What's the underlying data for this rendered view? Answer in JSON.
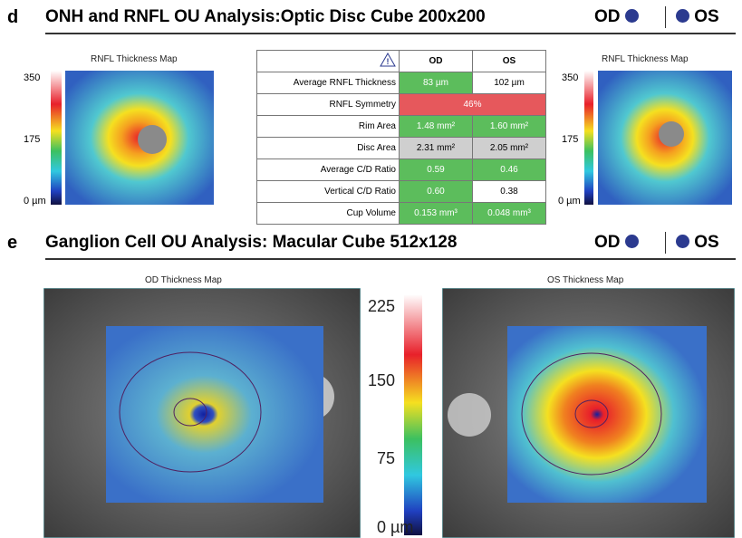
{
  "panel_d": {
    "label": "d",
    "title": "ONH and RNFL OU Analysis:Optic Disc Cube 200x200",
    "od": "OD",
    "os": "OS",
    "left_map": {
      "title": "RNFL Thickness Map",
      "scale": [
        "350",
        "175",
        "0 µm"
      ]
    },
    "right_map": {
      "title": "RNFL Thickness Map",
      "scale": [
        "350",
        "175",
        "0 µm"
      ]
    },
    "table": {
      "header": [
        "OD",
        "OS"
      ],
      "rows": [
        [
          "Average RNFL Thickness",
          "83 µm",
          "102 µm"
        ],
        [
          "RNFL Symmetry",
          "46%"
        ],
        [
          "Rim Area",
          "1.48 mm²",
          "1.60 mm²"
        ],
        [
          "Disc Area",
          "2.31 mm²",
          "2.05 mm²"
        ],
        [
          "Average C/D Ratio",
          "0.59",
          "0.46"
        ],
        [
          "Vertical C/D Ratio",
          "0.60",
          "0.38"
        ],
        [
          "Cup Volume",
          "0.153 mm³",
          "0.048 mm³"
        ]
      ]
    }
  },
  "panel_e": {
    "label": "e",
    "title": "Ganglion Cell OU Analysis: Macular Cube 512x128",
    "od": "OD",
    "os": "OS",
    "od_map_title": "OD Thickness Map",
    "os_map_title": "OS Thickness Map",
    "scale": [
      "225",
      "150",
      "75",
      "0 µm"
    ]
  }
}
